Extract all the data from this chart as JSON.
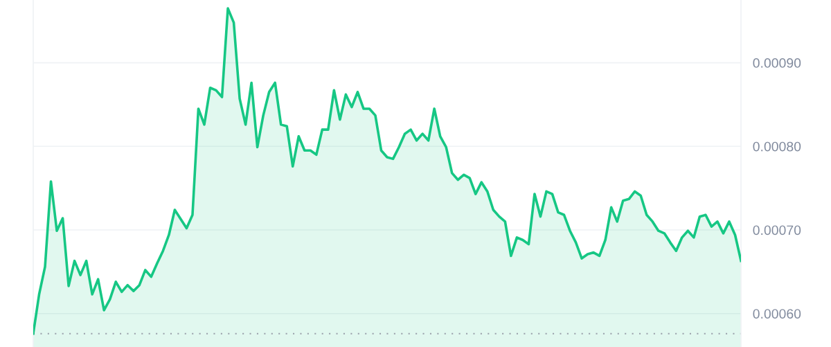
{
  "chart_data": {
    "type": "area",
    "categories": [
      null,
      null,
      null,
      null,
      null,
      null,
      null,
      null,
      null,
      null,
      null,
      null,
      null,
      null,
      null,
      null,
      null,
      null,
      null,
      null,
      null,
      null,
      null,
      null,
      null,
      null,
      null,
      null,
      null,
      null,
      null,
      null,
      null,
      null,
      null,
      null,
      null,
      null,
      null,
      null,
      null,
      null,
      null,
      null,
      null,
      null,
      null,
      null,
      null,
      null,
      null,
      null,
      null,
      null,
      null,
      null,
      null,
      null,
      null,
      null,
      null,
      null,
      null,
      null,
      null,
      null,
      null,
      null,
      null,
      null,
      null,
      null,
      null,
      null,
      null,
      null,
      null,
      null,
      null,
      null,
      null,
      null,
      null,
      null,
      null,
      null,
      null,
      null,
      null,
      null,
      null,
      null,
      null,
      null,
      null,
      null,
      null,
      null,
      null,
      null,
      null,
      null,
      null,
      null,
      null,
      null,
      null,
      null,
      null,
      null,
      null,
      null,
      null,
      null,
      null,
      null,
      null,
      null,
      null,
      null,
      null
    ],
    "series": [
      {
        "color": "#16c784",
        "values": [
          0.000576,
          0.000623,
          0.000656,
          0.000758,
          0.000699,
          0.000714,
          0.000633,
          0.000663,
          0.000646,
          0.000663,
          0.000623,
          0.000641,
          0.000604,
          0.000617,
          0.000638,
          0.000626,
          0.000634,
          0.000627,
          0.000634,
          0.000652,
          0.000644,
          0.00066,
          0.000675,
          0.000694,
          0.000724,
          0.000713,
          0.000702,
          0.000718,
          0.000845,
          0.000826,
          0.00087,
          0.000867,
          0.000859,
          0.000965,
          0.000948,
          0.000857,
          0.000826,
          0.000876,
          0.000799,
          0.000837,
          0.000865,
          0.000876,
          0.000826,
          0.000824,
          0.000776,
          0.000812,
          0.000795,
          0.000795,
          0.00079,
          0.00082,
          0.00082,
          0.000867,
          0.000832,
          0.000862,
          0.000847,
          0.000865,
          0.000845,
          0.000845,
          0.000837,
          0.000795,
          0.000787,
          0.000785,
          0.000799,
          0.000815,
          0.00082,
          0.000807,
          0.000815,
          0.000807,
          0.000845,
          0.000812,
          0.000799,
          0.000768,
          0.00076,
          0.000766,
          0.000762,
          0.000743,
          0.000757,
          0.000746,
          0.000724,
          0.000716,
          0.00071,
          0.000669,
          0.000691,
          0.000688,
          0.000683,
          0.000743,
          0.000716,
          0.000746,
          0.000743,
          0.000721,
          0.000718,
          0.000699,
          0.000685,
          0.000666,
          0.000671,
          0.000673,
          0.000669,
          0.000688,
          0.000727,
          0.00071,
          0.000735,
          0.000737,
          0.000746,
          0.000741,
          0.000718,
          0.00071,
          0.000699,
          0.000696,
          0.000685,
          0.000675,
          0.000691,
          0.000699,
          0.000691,
          0.000716,
          0.000718,
          0.000704,
          0.00071,
          0.000696,
          0.00071,
          0.000694,
          0.000663
        ]
      }
    ],
    "ylim": [
      0.00056,
      0.000975
    ],
    "yticks": [
      {
        "value": 0.0006,
        "label": "0.00060"
      },
      {
        "value": 0.0007,
        "label": "0.00070"
      },
      {
        "value": 0.0008,
        "label": "0.00080"
      },
      {
        "value": 0.0009,
        "label": "0.00090"
      }
    ],
    "grid": "y",
    "ref_lines": [
      {
        "axis": "y",
        "value": 0.000576,
        "label": null,
        "color": "#9aa0ab",
        "line_style": "dotted"
      }
    ]
  }
}
